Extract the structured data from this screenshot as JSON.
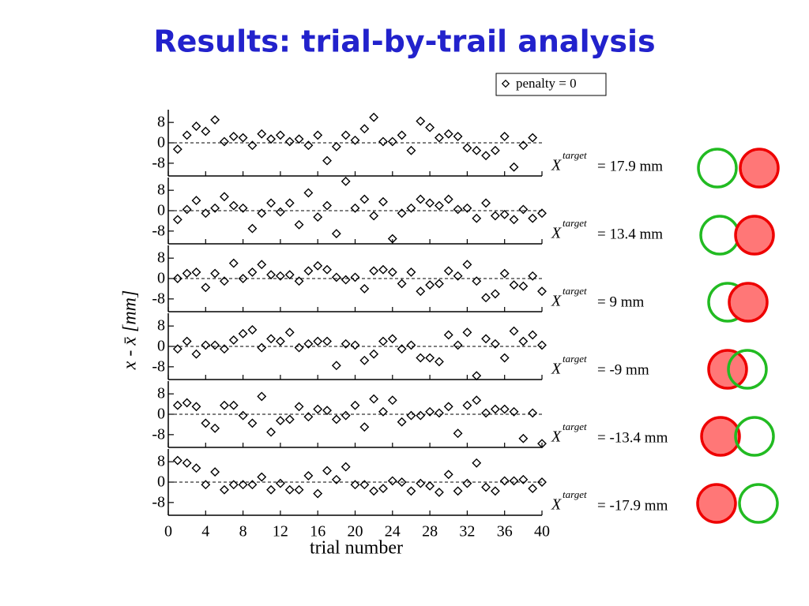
{
  "title": "Results: trial-by-trail analysis",
  "legend": "penalty = 0",
  "xlabel": "trial number",
  "ylabel": "x - x̄ [mm]",
  "chart_data": [
    {
      "type": "scatter",
      "xlim": [
        0,
        40
      ],
      "xticks": [
        0,
        4,
        8,
        12,
        16,
        20,
        24,
        28,
        32,
        36,
        40
      ],
      "ylim": [
        -13,
        13
      ],
      "yticks": [
        -8,
        0,
        8
      ],
      "hline": 0,
      "label_symbol": "X",
      "label_superscript": "target",
      "label_value": "= 17.9 mm",
      "x": [
        1,
        2,
        3,
        4,
        5,
        6,
        7,
        8,
        9,
        10,
        11,
        12,
        13,
        14,
        15,
        16,
        17,
        18,
        19,
        20,
        21,
        22,
        23,
        24,
        25,
        26,
        27,
        28,
        29,
        30,
        31,
        32,
        33,
        34,
        35,
        36,
        37,
        38,
        39
      ],
      "values": [
        -2.5,
        3,
        6.5,
        4.5,
        9,
        0.5,
        2.5,
        2,
        -1,
        3.5,
        1.5,
        3,
        0.5,
        1.5,
        -1,
        3,
        -7,
        -1.5,
        3,
        1,
        5.5,
        10,
        0.5,
        0.5,
        3,
        -3,
        8.5,
        6,
        2,
        3.5,
        2.5,
        -2,
        -3,
        -5,
        -3,
        2.5,
        -9.5,
        -1,
        2
      ]
    },
    {
      "type": "scatter",
      "xlim": [
        0,
        40
      ],
      "xticks": [
        0,
        4,
        8,
        12,
        16,
        20,
        24,
        28,
        32,
        36,
        40
      ],
      "ylim": [
        -13,
        13
      ],
      "yticks": [
        -8,
        0,
        8
      ],
      "hline": 0,
      "label_symbol": "X",
      "label_superscript": "target",
      "label_value": "= 13.4 mm",
      "x": [
        1,
        2,
        3,
        4,
        5,
        6,
        7,
        8,
        9,
        10,
        11,
        12,
        13,
        14,
        15,
        16,
        17,
        18,
        19,
        20,
        21,
        22,
        23,
        24,
        25,
        26,
        27,
        28,
        29,
        30,
        31,
        32,
        33,
        34,
        35,
        36,
        37,
        38,
        39,
        40
      ],
      "values": [
        -3.5,
        0.5,
        4,
        -1,
        1,
        5.5,
        2,
        1,
        -7,
        -1,
        3,
        -0.5,
        3,
        -5.5,
        7,
        -2.5,
        2,
        -9,
        11.5,
        1,
        4.5,
        -2,
        3.5,
        -11,
        -1,
        1,
        4.5,
        3,
        2,
        4.5,
        0.5,
        1,
        -3,
        3,
        -2,
        -1.5,
        -3.5,
        0.5,
        -3,
        -1
      ]
    },
    {
      "type": "scatter",
      "xlim": [
        0,
        40
      ],
      "xticks": [
        0,
        4,
        8,
        12,
        16,
        20,
        24,
        28,
        32,
        36,
        40
      ],
      "ylim": [
        -13,
        13
      ],
      "yticks": [
        -8,
        0,
        8
      ],
      "hline": 0,
      "label_symbol": "X",
      "label_superscript": "target",
      "label_value": "= 9 mm",
      "x": [
        1,
        2,
        3,
        4,
        5,
        6,
        7,
        8,
        9,
        10,
        11,
        12,
        13,
        14,
        15,
        16,
        17,
        18,
        19,
        20,
        21,
        22,
        23,
        24,
        25,
        26,
        27,
        28,
        29,
        30,
        31,
        32,
        33,
        34,
        35,
        36,
        37,
        38,
        39,
        40
      ],
      "values": [
        0,
        2,
        2.5,
        -3.5,
        2,
        -1,
        6,
        0,
        2.5,
        5.5,
        1.5,
        1,
        1.5,
        -1,
        3,
        5,
        3.5,
        0.5,
        -0.5,
        0.5,
        -4,
        3,
        3.5,
        2.5,
        -2,
        2.5,
        -5,
        -2.5,
        -2,
        3,
        1,
        5.5,
        -1,
        -7.5,
        -6,
        2,
        -2.5,
        -3,
        1,
        -5
      ]
    },
    {
      "type": "scatter",
      "xlim": [
        0,
        40
      ],
      "xticks": [
        0,
        4,
        8,
        12,
        16,
        20,
        24,
        28,
        32,
        36,
        40
      ],
      "ylim": [
        -13,
        13
      ],
      "yticks": [
        -8,
        0,
        8
      ],
      "hline": 0,
      "label_symbol": "X",
      "label_superscript": "target",
      "label_value": "= -9 mm",
      "x": [
        1,
        2,
        3,
        4,
        5,
        6,
        7,
        8,
        9,
        10,
        11,
        12,
        13,
        14,
        15,
        16,
        17,
        18,
        19,
        20,
        21,
        22,
        23,
        24,
        25,
        26,
        27,
        28,
        29,
        30,
        31,
        32,
        33,
        34,
        35,
        36,
        37,
        38,
        39,
        40
      ],
      "values": [
        -1,
        2,
        -3,
        0.5,
        0.5,
        -1,
        2.5,
        5,
        6.5,
        -0.5,
        3,
        2,
        5.5,
        -0.5,
        1,
        2,
        2,
        -7.5,
        1,
        0.5,
        -5.5,
        -3,
        2,
        3,
        -1,
        0.5,
        -4.5,
        -4.5,
        -6,
        4.5,
        0.5,
        5.5,
        -11.5,
        3,
        1,
        -4.5,
        6,
        2,
        4.5,
        0.5
      ]
    },
    {
      "type": "scatter",
      "xlim": [
        0,
        40
      ],
      "xticks": [
        0,
        4,
        8,
        12,
        16,
        20,
        24,
        28,
        32,
        36,
        40
      ],
      "ylim": [
        -13,
        13
      ],
      "yticks": [
        -8,
        0,
        8
      ],
      "hline": 0,
      "label_symbol": "X",
      "label_superscript": "target",
      "label_value": "= -13.4 mm",
      "x": [
        1,
        2,
        3,
        4,
        5,
        6,
        7,
        8,
        9,
        10,
        11,
        12,
        13,
        14,
        15,
        16,
        17,
        18,
        19,
        20,
        21,
        22,
        23,
        24,
        25,
        26,
        27,
        28,
        29,
        30,
        31,
        32,
        33,
        34,
        35,
        36,
        37,
        38,
        39,
        40
      ],
      "values": [
        3.5,
        4.5,
        3,
        -3.5,
        -5.5,
        3.5,
        3.5,
        -0.5,
        -3.5,
        7,
        -7,
        -2.5,
        -2,
        3,
        -1,
        2,
        1.5,
        -2,
        -0.5,
        3.5,
        -5,
        6,
        1,
        5.5,
        -3,
        -0.5,
        -0.5,
        1,
        0.5,
        3,
        -7.5,
        3.5,
        5.5,
        0.5,
        2,
        2,
        1,
        -9.5,
        0.5,
        -11.5
      ]
    },
    {
      "type": "scatter",
      "xlim": [
        0,
        40
      ],
      "xticks": [
        0,
        4,
        8,
        12,
        16,
        20,
        24,
        28,
        32,
        36,
        40
      ],
      "ylim": [
        -13,
        13
      ],
      "yticks": [
        -8,
        0,
        8
      ],
      "hline": 0,
      "label_symbol": "X",
      "label_superscript": "target",
      "label_value": "= -17.9 mm",
      "x": [
        1,
        2,
        3,
        4,
        5,
        6,
        7,
        8,
        9,
        10,
        11,
        12,
        13,
        14,
        15,
        16,
        17,
        18,
        19,
        20,
        21,
        22,
        23,
        24,
        25,
        26,
        27,
        28,
        29,
        30,
        31,
        32,
        33,
        34,
        35,
        36,
        37,
        38,
        39,
        40
      ],
      "values": [
        8.5,
        7.5,
        5.5,
        -1,
        4,
        -3,
        -1,
        -1,
        -1,
        2,
        -3,
        -0.5,
        -3,
        -3,
        2.5,
        -4.5,
        4.5,
        1,
        6,
        -1,
        -1,
        -3.5,
        -2.5,
        0.5,
        0,
        -3.5,
        -0.5,
        -1.5,
        -4,
        3,
        -3.5,
        -0.5,
        7.5,
        -2,
        -3.5,
        0.5,
        0.5,
        1,
        -2.5,
        0
      ]
    }
  ]
}
